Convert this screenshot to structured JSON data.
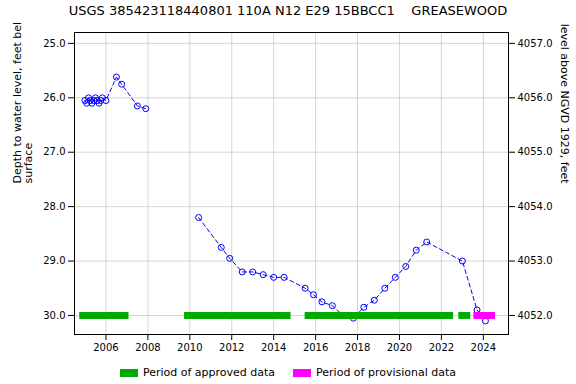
{
  "chart_data": {
    "type": "line",
    "title": "USGS 385423118440801 110A N12 E29 15BBCC1    GREASEWOOD",
    "ylabel": "Depth to water level, feet below land\nsurface",
    "y2label": "Groundwater level above NGVD 1929, feet",
    "xlim": [
      2004.5,
      2025.2
    ],
    "xticks": [
      2006,
      2008,
      2010,
      2012,
      2014,
      2016,
      2018,
      2020,
      2022,
      2024
    ],
    "ylim": [
      30.35,
      24.8
    ],
    "yticks": [
      {
        "value": 25.0,
        "label": "25.0"
      },
      {
        "value": 26.0,
        "label": "26.0"
      },
      {
        "value": 27.0,
        "label": "27.0"
      },
      {
        "value": 28.0,
        "label": "28.0"
      },
      {
        "value": 29.0,
        "label": "29.0"
      },
      {
        "value": 30.0,
        "label": "30.0"
      }
    ],
    "y2lim": [
      4051.65,
      4057.2
    ],
    "y2ticks": [
      {
        "value": 4057.0,
        "label": "4057.0"
      },
      {
        "value": 4056.0,
        "label": "4056.0"
      },
      {
        "value": 4055.0,
        "label": "4055.0"
      },
      {
        "value": 4054.0,
        "label": "4054.0"
      },
      {
        "value": 4053.0,
        "label": "4053.0"
      },
      {
        "value": 4052.0,
        "label": "4052.0"
      }
    ],
    "grid": true,
    "legend": "bottom",
    "series": [
      {
        "color": "#0000ff",
        "marker": "circle",
        "line_style": "dashed",
        "segments": [
          {
            "x": [
              2005.0,
              2005.08,
              2005.17,
              2005.25,
              2005.33,
              2005.42,
              2005.5,
              2005.58,
              2005.67,
              2005.75,
              2005.83,
              2006.0,
              2006.5,
              2006.75,
              2007.5,
              2007.9
            ],
            "y": [
              26.05,
              26.1,
              26.0,
              26.05,
              26.1,
              26.05,
              26.0,
              26.05,
              26.1,
              26.05,
              26.0,
              26.05,
              25.62,
              25.75,
              26.15,
              26.2
            ]
          },
          {
            "x": [
              2010.42,
              2011.5,
              2011.9,
              2012.5,
              2013.0,
              2013.5,
              2014.0,
              2014.5,
              2015.5,
              2015.9,
              2016.3,
              2016.8,
              2017.3,
              2017.8,
              2018.3,
              2018.8,
              2019.3,
              2019.8,
              2020.3,
              2020.8,
              2021.3,
              2023.0,
              2023.7,
              2024.1
            ],
            "y": [
              28.2,
              28.75,
              28.95,
              29.2,
              29.2,
              29.25,
              29.3,
              29.3,
              29.5,
              29.62,
              29.75,
              29.82,
              30.0,
              30.05,
              29.85,
              29.72,
              29.5,
              29.3,
              29.1,
              28.8,
              28.65,
              29.0,
              29.9,
              30.1
            ]
          }
        ]
      }
    ],
    "periods": [
      {
        "name": "Period of approved data",
        "color": "#00aa00",
        "y": 30.0,
        "ranges": [
          [
            2004.75,
            2007.1
          ],
          [
            2009.75,
            2014.83
          ],
          [
            2015.5,
            2022.58
          ],
          [
            2022.83,
            2023.4
          ]
        ]
      },
      {
        "name": "Period of provisional data",
        "color": "#ff00ff",
        "y": 30.0,
        "ranges": [
          [
            2023.55,
            2024.58
          ]
        ]
      }
    ]
  }
}
